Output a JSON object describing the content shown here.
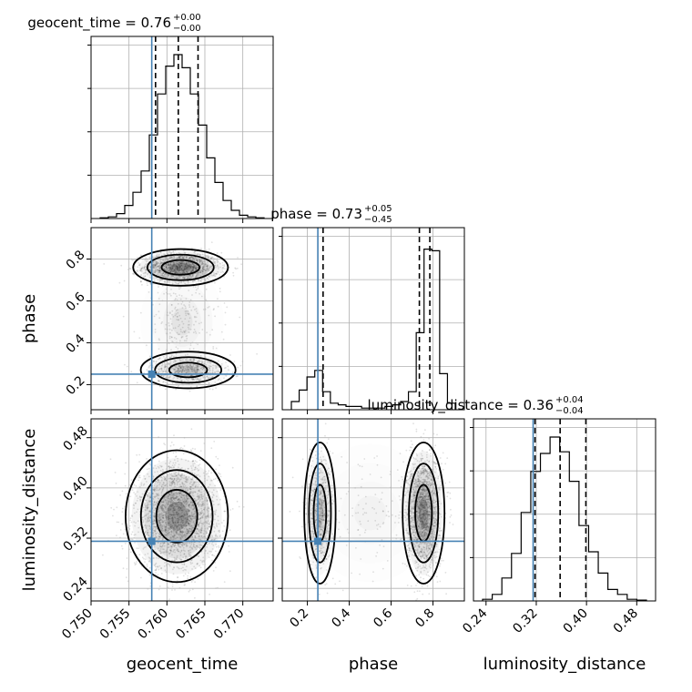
{
  "chart_data": {
    "type": "corner",
    "parameters": [
      "geocent_time",
      "phase",
      "luminosity_distance"
    ],
    "truths": {
      "geocent_time": 0.758,
      "phase": 0.25,
      "luminosity_distance": 0.315
    },
    "truth_color": "#4682b4",
    "titles": [
      {
        "text": "geocent_time = 0.76",
        "sup": "+0.00",
        "sub": "−0.00"
      },
      {
        "text": "phase = 0.73",
        "sup": "+0.05",
        "sub": "−0.45"
      },
      {
        "text": "luminosity_distance = 0.36",
        "sup": "+0.04",
        "sub": "−0.04"
      }
    ],
    "axis_labels": {
      "x": [
        "geocent_time",
        "phase",
        "luminosity_distance"
      ],
      "y": [
        "phase",
        "luminosity_distance"
      ]
    },
    "ranges": {
      "geocent_time": [
        0.75,
        0.774
      ],
      "phase": [
        0.08,
        0.95
      ],
      "luminosity_distance": [
        0.22,
        0.51
      ]
    },
    "ticks": {
      "geocent_time": [
        {
          "v": 0.75,
          "label": "0.750"
        },
        {
          "v": 0.755,
          "label": "0.755"
        },
        {
          "v": 0.76,
          "label": "0.760"
        },
        {
          "v": 0.765,
          "label": "0.765"
        },
        {
          "v": 0.77,
          "label": "0.770"
        }
      ],
      "phase": [
        {
          "v": 0.2,
          "label": "0.2"
        },
        {
          "v": 0.4,
          "label": "0.4"
        },
        {
          "v": 0.6,
          "label": "0.6"
        },
        {
          "v": 0.8,
          "label": "0.8"
        }
      ],
      "luminosity_distance": [
        {
          "v": 0.24,
          "label": "0.24"
        },
        {
          "v": 0.32,
          "label": "0.32"
        },
        {
          "v": 0.4,
          "label": "0.40"
        },
        {
          "v": 0.48,
          "label": "0.48"
        }
      ]
    },
    "quantiles": {
      "geocent_time": [
        0.7585,
        0.7615,
        0.7641
      ],
      "phase": [
        0.275,
        0.735,
        0.785
      ],
      "luminosity_distance": [
        0.318,
        0.358,
        0.399
      ]
    },
    "histograms": {
      "geocent_time": [
        0.004,
        0.01,
        0.03,
        0.08,
        0.16,
        0.29,
        0.51,
        0.76,
        0.93,
        1.0,
        0.92,
        0.76,
        0.57,
        0.37,
        0.22,
        0.11,
        0.05,
        0.02,
        0.01,
        0.004
      ],
      "phase": [
        0.05,
        0.12,
        0.2,
        0.24,
        0.11,
        0.04,
        0.03,
        0.02,
        0.02,
        0.01,
        0.01,
        0.01,
        0.02,
        0.03,
        0.05,
        0.11,
        0.47,
        0.98,
        0.97,
        0.22,
        0.04
      ],
      "luminosity_distance": [
        0.01,
        0.04,
        0.14,
        0.29,
        0.54,
        0.79,
        0.9,
        1.0,
        0.91,
        0.73,
        0.46,
        0.3,
        0.17,
        0.07,
        0.04,
        0.01,
        0.005
      ]
    },
    "sample_clusters": {
      "geocent_time|phase": [
        {
          "mx": 0.7618,
          "my": 0.76,
          "sx": 0.0025,
          "sy": 0.035,
          "w": 0.65
        },
        {
          "mx": 0.7628,
          "my": 0.27,
          "sx": 0.0025,
          "sy": 0.035,
          "w": 0.25
        },
        {
          "mx": 0.762,
          "my": 0.5,
          "sx": 0.0025,
          "sy": 0.12,
          "w": 0.1
        }
      ],
      "geocent_time|luminosity_distance": [
        {
          "mx": 0.7613,
          "my": 0.355,
          "sx": 0.0027,
          "sy": 0.042,
          "w": 1.0
        }
      ],
      "phase|luminosity_distance": [
        {
          "mx": 0.755,
          "my": 0.36,
          "sx": 0.04,
          "sy": 0.045,
          "w": 0.68
        },
        {
          "mx": 0.26,
          "my": 0.36,
          "sx": 0.03,
          "sy": 0.045,
          "w": 0.27
        },
        {
          "mx": 0.5,
          "my": 0.36,
          "sx": 0.14,
          "sy": 0.05,
          "w": 0.05
        }
      ]
    },
    "grid": true,
    "contour_levels": [
      0.39,
      0.86,
      0.99
    ]
  }
}
